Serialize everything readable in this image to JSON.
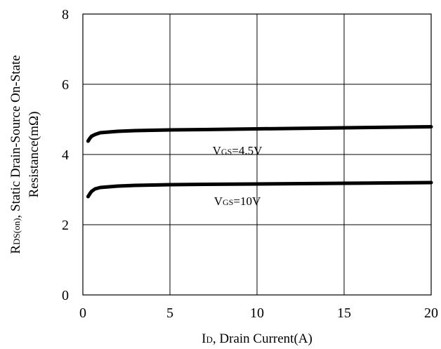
{
  "chart_data": {
    "type": "line",
    "xlabel": "ID, Drain Current(A)",
    "xlabel_main": "I",
    "xlabel_sub": "D",
    "xlabel_rest": ", Drain Current(A)",
    "ylabel_line1": "RDS(on), Static Drain-Source On-State",
    "ylabel_main": "R",
    "ylabel_sub": "DS(on)",
    "ylabel_rest": ", Static Drain-Source On-State",
    "ylabel_line2": "Resistance(mΩ)",
    "xlim": [
      0,
      20
    ],
    "ylim": [
      0,
      8
    ],
    "xticks": [
      0,
      5,
      10,
      15,
      20
    ],
    "yticks": [
      0,
      2,
      4,
      6,
      8
    ],
    "grid": true,
    "series": [
      {
        "name": "VGS=4.5V",
        "label_main": "V",
        "label_sub": "GS",
        "label_rest": "=4.5V",
        "x": [
          0.3,
          0.4,
          0.5,
          0.7,
          1.0,
          1.5,
          2,
          3,
          4,
          5,
          7,
          10,
          15,
          20
        ],
        "y": [
          4.38,
          4.46,
          4.52,
          4.57,
          4.62,
          4.64,
          4.66,
          4.68,
          4.69,
          4.7,
          4.71,
          4.73,
          4.76,
          4.79
        ],
        "label_at": [
          8.6,
          4.0
        ]
      },
      {
        "name": "VGS=10V",
        "label_main": "V",
        "label_sub": "GS",
        "label_rest": "=10V",
        "x": [
          0.3,
          0.4,
          0.5,
          0.7,
          1.0,
          1.5,
          2,
          3,
          4,
          5,
          7,
          10,
          15,
          20
        ],
        "y": [
          2.8,
          2.88,
          2.95,
          3.02,
          3.06,
          3.08,
          3.1,
          3.12,
          3.13,
          3.14,
          3.15,
          3.16,
          3.18,
          3.2
        ]
      }
    ],
    "line_color": "#000000"
  }
}
